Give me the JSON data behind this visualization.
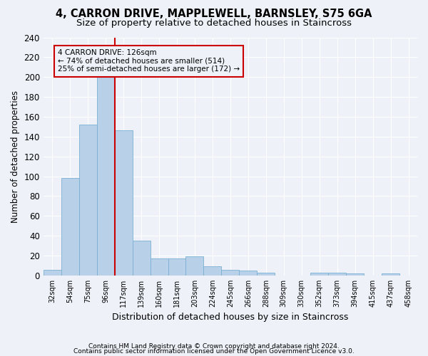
{
  "title1": "4, CARRON DRIVE, MAPPLEWELL, BARNSLEY, S75 6GA",
  "title2": "Size of property relative to detached houses in Staincross",
  "xlabel": "Distribution of detached houses by size in Staincross",
  "ylabel": "Number of detached properties",
  "footer1": "Contains HM Land Registry data © Crown copyright and database right 2024.",
  "footer2": "Contains public sector information licensed under the Open Government Licence v3.0.",
  "annotation_title": "4 CARRON DRIVE: 126sqm",
  "annotation_line1": "← 74% of detached houses are smaller (514)",
  "annotation_line2": "25% of semi-detached houses are larger (172) →",
  "bar_color": "#b8d0e8",
  "bar_edge_color": "#7aafd4",
  "vline_color": "#cc0000",
  "categories": [
    "32sqm",
    "54sqm",
    "75sqm",
    "96sqm",
    "117sqm",
    "139sqm",
    "160sqm",
    "181sqm",
    "203sqm",
    "224sqm",
    "245sqm",
    "266sqm",
    "288sqm",
    "309sqm",
    "330sqm",
    "352sqm",
    "373sqm",
    "394sqm",
    "415sqm",
    "437sqm",
    "458sqm"
  ],
  "values": [
    6,
    98,
    152,
    200,
    146,
    35,
    17,
    17,
    19,
    9,
    6,
    5,
    3,
    0,
    0,
    3,
    3,
    2,
    0,
    2,
    0
  ],
  "ylim": [
    0,
    240
  ],
  "yticks": [
    0,
    20,
    40,
    60,
    80,
    100,
    120,
    140,
    160,
    180,
    200,
    220,
    240
  ],
  "vline_x_index": 4,
  "bg_color": "#eef2f8",
  "grid_color": "#ffffff",
  "title_fontsize": 10,
  "subtitle_fontsize": 9
}
